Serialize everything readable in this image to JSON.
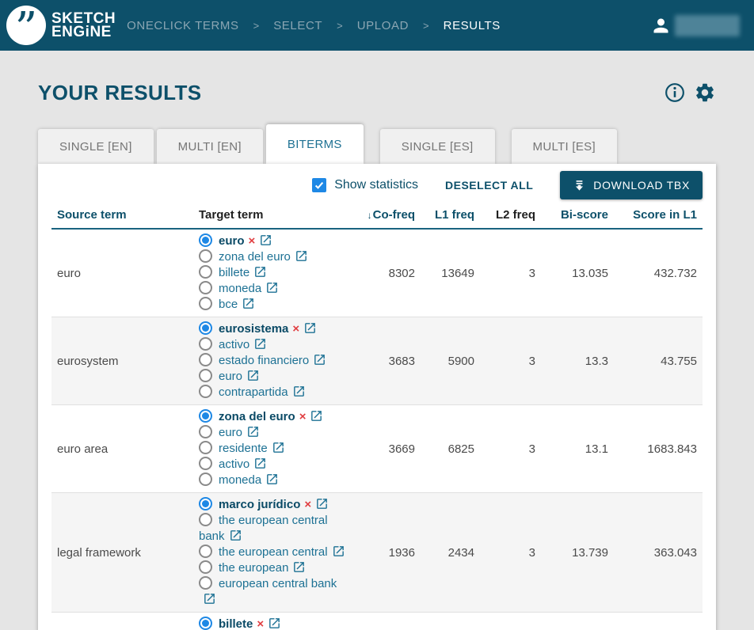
{
  "header": {
    "logo": {
      "mark": "”",
      "line1": "SKETCH",
      "line2": "ENGiNE"
    },
    "breadcrumb": {
      "separator": ">",
      "items": [
        {
          "label": "ONECLICK TERMS",
          "current": false
        },
        {
          "label": "SELECT",
          "current": false
        },
        {
          "label": "UPLOAD",
          "current": false
        },
        {
          "label": "RESULTS",
          "current": true
        }
      ]
    }
  },
  "page": {
    "title": "YOUR RESULTS"
  },
  "icons": {
    "user": "person-icon",
    "info": "info-icon",
    "settings": "gear-icon",
    "download": "download-icon",
    "external": "open-in-new-icon",
    "remove": "remove-x-icon",
    "sort": "sort-descending-arrow"
  },
  "tabs": [
    {
      "label": "SINGLE [EN]",
      "active": false,
      "group_start": false
    },
    {
      "label": "MULTI [EN]",
      "active": false,
      "group_start": false
    },
    {
      "label": "BITERMS",
      "active": true,
      "group_start": false
    },
    {
      "label": "SINGLE [ES]",
      "active": false,
      "group_start": true
    },
    {
      "label": "MULTI [ES]",
      "active": false,
      "group_start": true
    }
  ],
  "toolbar": {
    "show_statistics": {
      "label": "Show statistics",
      "checked": true
    },
    "deselect_all_label": "DESELECT ALL",
    "download_button_label": "DOWNLOAD TBX"
  },
  "table": {
    "sort_arrow": "↓",
    "remove_glyph": "×",
    "columns": [
      {
        "label": "Source term",
        "style": "accent",
        "align": "left"
      },
      {
        "label": "Target term",
        "style": "plain",
        "align": "left"
      },
      {
        "label": "Co-freq",
        "style": "accent",
        "align": "right",
        "sort": "desc"
      },
      {
        "label": "L1 freq",
        "style": "accent",
        "align": "right"
      },
      {
        "label": "L2 freq",
        "style": "plain",
        "align": "right"
      },
      {
        "label": "Bi-score",
        "style": "accent",
        "align": "right"
      },
      {
        "label": "Score in L1",
        "style": "accent",
        "align": "right"
      }
    ],
    "rows": [
      {
        "source": "euro",
        "options": [
          {
            "term": "euro",
            "selected": true
          },
          {
            "term": "zona del euro",
            "selected": false
          },
          {
            "term": "billete",
            "selected": false
          },
          {
            "term": "moneda",
            "selected": false
          },
          {
            "term": "bce",
            "selected": false
          }
        ],
        "stats": {
          "co_freq": "8302",
          "l1_freq": "13649",
          "l2_freq": "3",
          "bi_score": "13.035",
          "score_in_l1": "432.732"
        }
      },
      {
        "source": "eurosystem",
        "options": [
          {
            "term": "eurosistema",
            "selected": true
          },
          {
            "term": "activo",
            "selected": false
          },
          {
            "term": "estado financiero",
            "selected": false
          },
          {
            "term": "euro",
            "selected": false
          },
          {
            "term": "contrapartida",
            "selected": false
          }
        ],
        "stats": {
          "co_freq": "3683",
          "l1_freq": "5900",
          "l2_freq": "3",
          "bi_score": "13.3",
          "score_in_l1": "43.755"
        }
      },
      {
        "source": "euro area",
        "options": [
          {
            "term": "zona del euro",
            "selected": true
          },
          {
            "term": "euro",
            "selected": false
          },
          {
            "term": "residente",
            "selected": false
          },
          {
            "term": "activo",
            "selected": false
          },
          {
            "term": "moneda",
            "selected": false
          }
        ],
        "stats": {
          "co_freq": "3669",
          "l1_freq": "6825",
          "l2_freq": "3",
          "bi_score": "13.1",
          "score_in_l1": "1683.843"
        }
      },
      {
        "source": "legal framework",
        "options": [
          {
            "term": "marco jurídico",
            "selected": true
          },
          {
            "term": "the european central bank",
            "selected": false
          },
          {
            "term": "the european central",
            "selected": false
          },
          {
            "term": "the european",
            "selected": false
          },
          {
            "term": "european central bank",
            "selected": false
          }
        ],
        "stats": {
          "co_freq": "1936",
          "l1_freq": "2434",
          "l2_freq": "3",
          "bi_score": "13.739",
          "score_in_l1": "363.043"
        }
      },
      {
        "source": "",
        "partial": true,
        "options": [
          {
            "term": "billete",
            "selected": true
          }
        ],
        "stats": {
          "co_freq": "",
          "l1_freq": "",
          "l2_freq": "",
          "bi_score": "",
          "score_in_l1": ""
        }
      }
    ]
  },
  "colors": {
    "header_bg": "#0d506a",
    "accent_dark": "#0d506a",
    "link_teal": "#1d7194",
    "active_tab_text": "#1e7193",
    "radio_selected": "#1e88e5",
    "checkbox": "#1e88e5",
    "remove_red": "#e03c3f",
    "page_bg": "#e5e5e5",
    "alt_row_bg": "#f5f5f5"
  }
}
